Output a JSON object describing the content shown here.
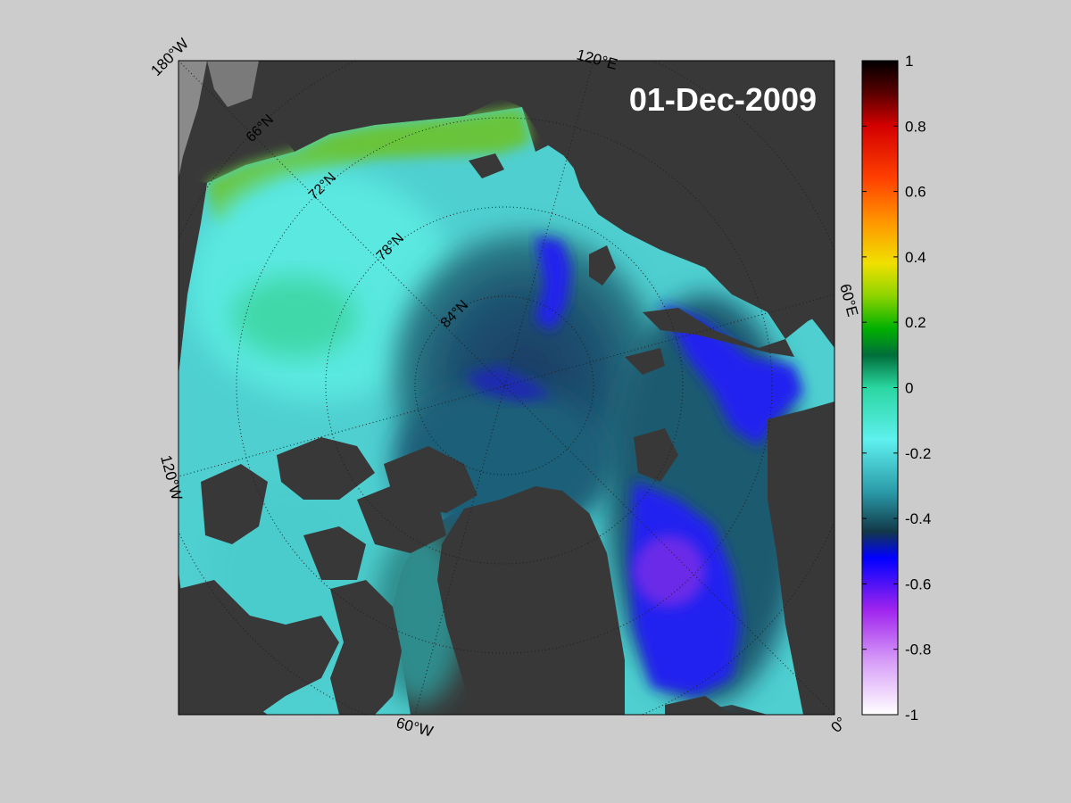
{
  "map": {
    "date_label": "01-Dec-2009",
    "longitude_labels": [
      "180°W",
      "120°E",
      "60°E",
      "0°",
      "60°W",
      "120°W"
    ],
    "latitude_labels": [
      "66°N",
      "72°N",
      "78°N",
      "84°N"
    ]
  },
  "colorbar": {
    "ticks": [
      "1",
      "0.8",
      "0.6",
      "0.4",
      "0.2",
      "0",
      "-0.2",
      "-0.4",
      "-0.6",
      "-0.8",
      "-1"
    ],
    "range": [
      -1,
      1
    ],
    "colors": {
      "top": "#000000",
      "red": "#ff0000",
      "orange": "#ff8c00",
      "yellow": "#f0f000",
      "green": "#00cc00",
      "dark_green": "#007a3d",
      "teal": "#33ccaa",
      "cyan": "#55eeee",
      "dark_teal": "#1a5566",
      "blue": "#0000ff",
      "purple": "#a020f0",
      "white": "#ffffff"
    }
  },
  "colors": {
    "land": "#383838",
    "outside_map": "#8a8a8a",
    "coast": "#7a7a7a",
    "background": "#cccccc"
  }
}
